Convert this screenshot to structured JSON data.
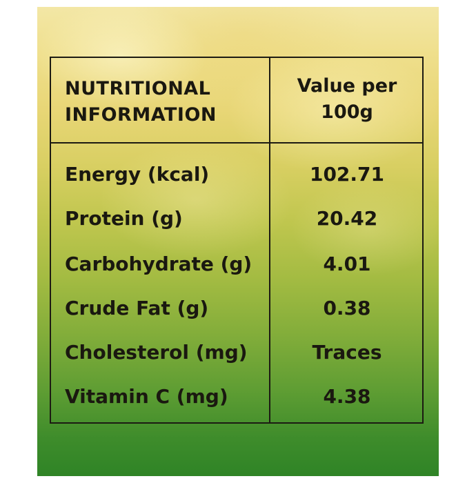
{
  "table": {
    "header": {
      "left_line1": "NUTRITIONAL",
      "left_line2": "INFORMATION",
      "right_line1": "Value per",
      "right_line2": "100g"
    },
    "rows": [
      {
        "label": "Energy (kcal)",
        "value": "102.71"
      },
      {
        "label": "Protein (g)",
        "value": "20.42"
      },
      {
        "label": "Carbohydrate (g)",
        "value": "4.01"
      },
      {
        "label": "Crude Fat (g)",
        "value": "0.38"
      },
      {
        "label": "Cholesterol (mg)",
        "value": "Traces"
      },
      {
        "label": "Vitamin C (mg)",
        "value": "4.38"
      }
    ]
  },
  "colors": {
    "text": "#1a1810",
    "border": "#1c1a12",
    "background_top": "#f3e7a6",
    "background_bottom": "#2f8426"
  }
}
